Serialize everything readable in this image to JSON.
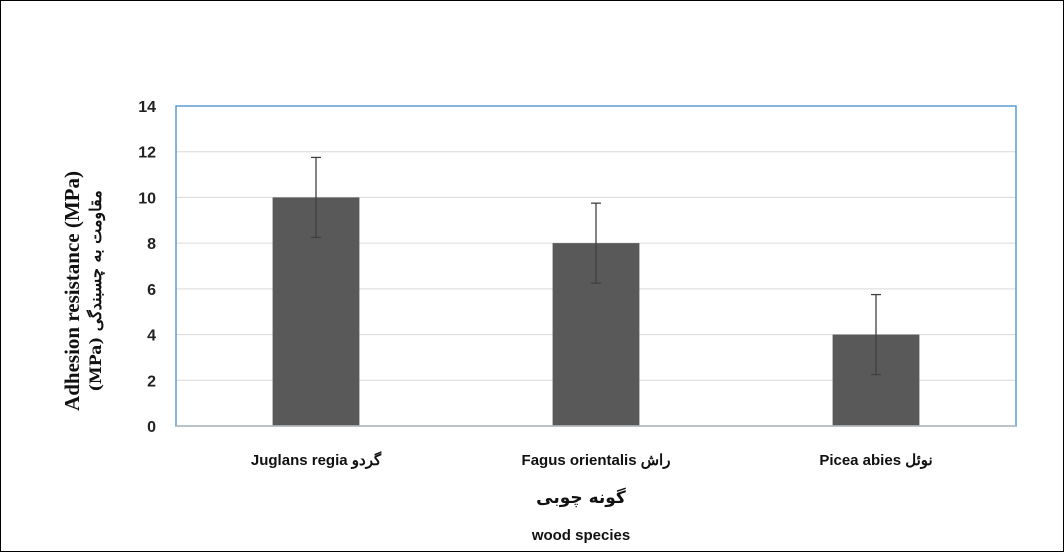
{
  "chart_data": {
    "type": "bar",
    "categories": [
      "Juglans regia گردو",
      "Fagus orientalis راش",
      "Picea abies  نوئل"
    ],
    "values": [
      10,
      8,
      4
    ],
    "error": [
      1.75,
      1.75,
      1.75
    ],
    "xlabel": [
      "گونه چوبی",
      "wood species"
    ],
    "ylabel": [
      "Adhesion resistance (MPa)",
      "مقاومت به چسبندگی (MPa)"
    ],
    "ylim": [
      0,
      14
    ],
    "yticks": [
      0,
      2,
      4,
      6,
      8,
      10,
      12,
      14
    ],
    "grid": true,
    "legend": "none",
    "colors": {
      "bar": "#595959",
      "grid": "#d9d9d9",
      "axis_frame": "#5b9bd5",
      "error_bar": "#404040"
    }
  }
}
